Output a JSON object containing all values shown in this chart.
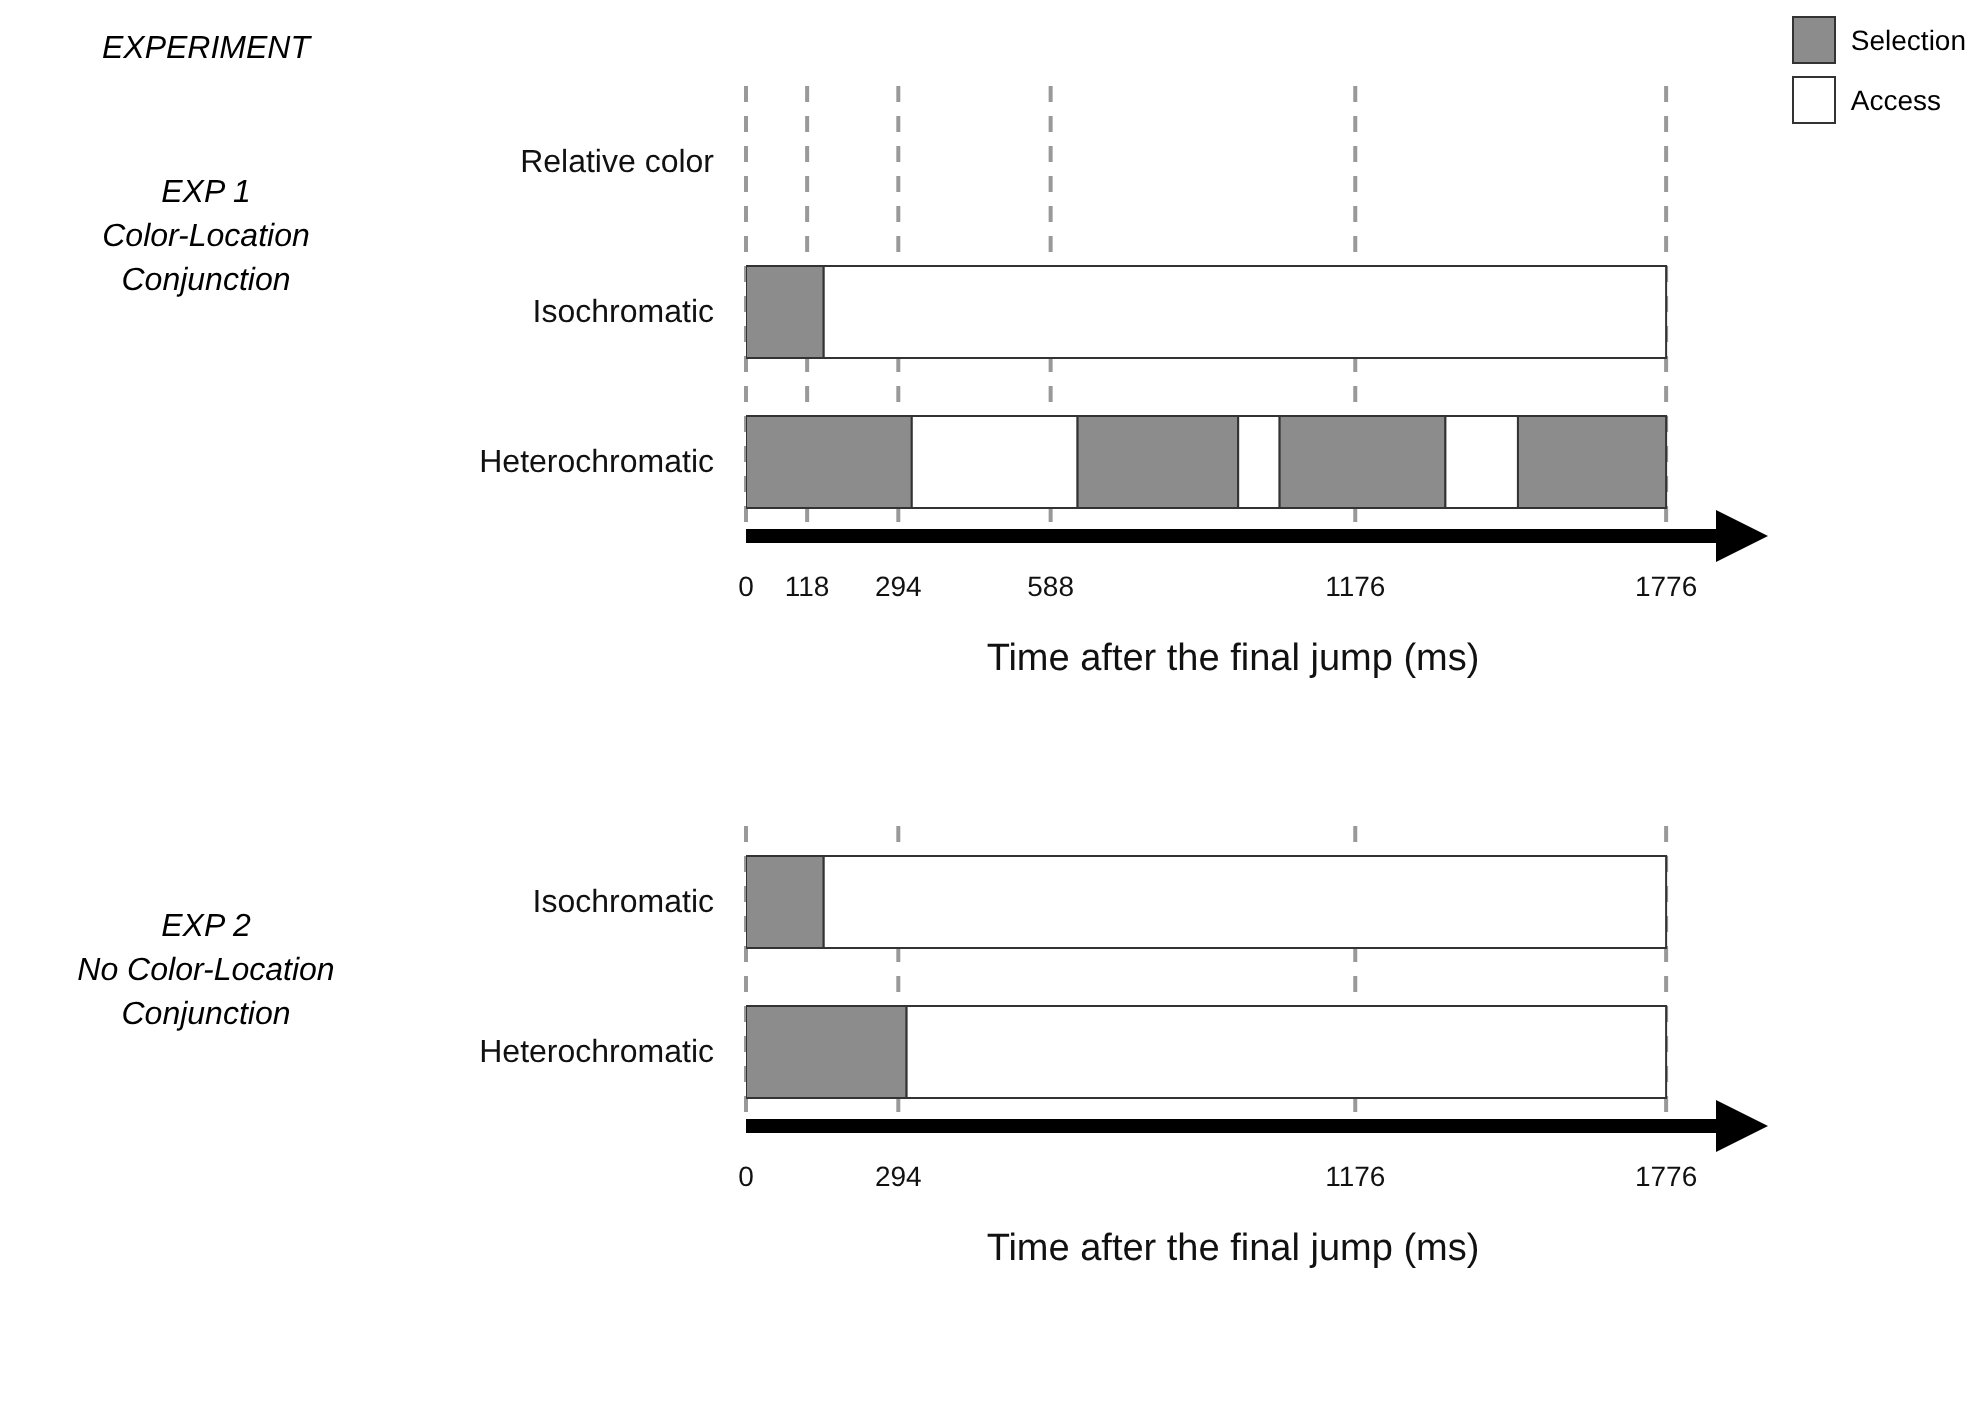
{
  "chart_data": [
    {
      "type": "bar",
      "orientation": "horizontal",
      "stacked": true,
      "title": "EXP 1\nColor-Location\nConjunction",
      "annotations": [
        "EXPERIMENT"
      ],
      "xlabel": "Time after the final jump (ms)",
      "categories": [
        "Relative color",
        "Isochromatic",
        "Heterochromatic"
      ],
      "series": [
        {
          "name": "Selection",
          "color": "#8c8c8c",
          "values": [
            null,
            150,
            320
          ]
        },
        {
          "name": "Access",
          "color": "#ffffff",
          "values": [
            null,
            1626,
            320
          ]
        },
        {
          "color": "#8c8c8c",
          "values": [
            null,
            null,
            310
          ]
        },
        {
          "color": "#ffffff",
          "values": [
            null,
            null,
            80
          ]
        },
        {
          "color": "#8c8c8c",
          "values": [
            null,
            null,
            320
          ]
        },
        {
          "color": "#ffffff",
          "values": [
            null,
            null,
            140
          ]
        },
        {
          "color": "#8c8c8c",
          "values": [
            null,
            null,
            286
          ]
        }
      ],
      "xlim": [
        0,
        1880
      ],
      "xticks": [
        0,
        118,
        294,
        588,
        1176,
        1776
      ],
      "grid": "x",
      "legend": "top right"
    },
    {
      "type": "bar",
      "orientation": "horizontal",
      "stacked": true,
      "title": "EXP 2\nNo Color-Location\nConjunction",
      "xlabel": "Time after the final jump (ms)",
      "categories": [
        "Isochromatic",
        "Heterochromatic"
      ],
      "series": [
        {
          "color": "#8c8c8c",
          "values": [
            150,
            310
          ]
        },
        {
          "color": "#ffffff",
          "values": [
            1626,
            1466
          ]
        }
      ],
      "xlim": [
        0,
        1880
      ],
      "xticks": [
        0,
        294,
        1176,
        1776
      ],
      "grid": "x"
    }
  ]
}
